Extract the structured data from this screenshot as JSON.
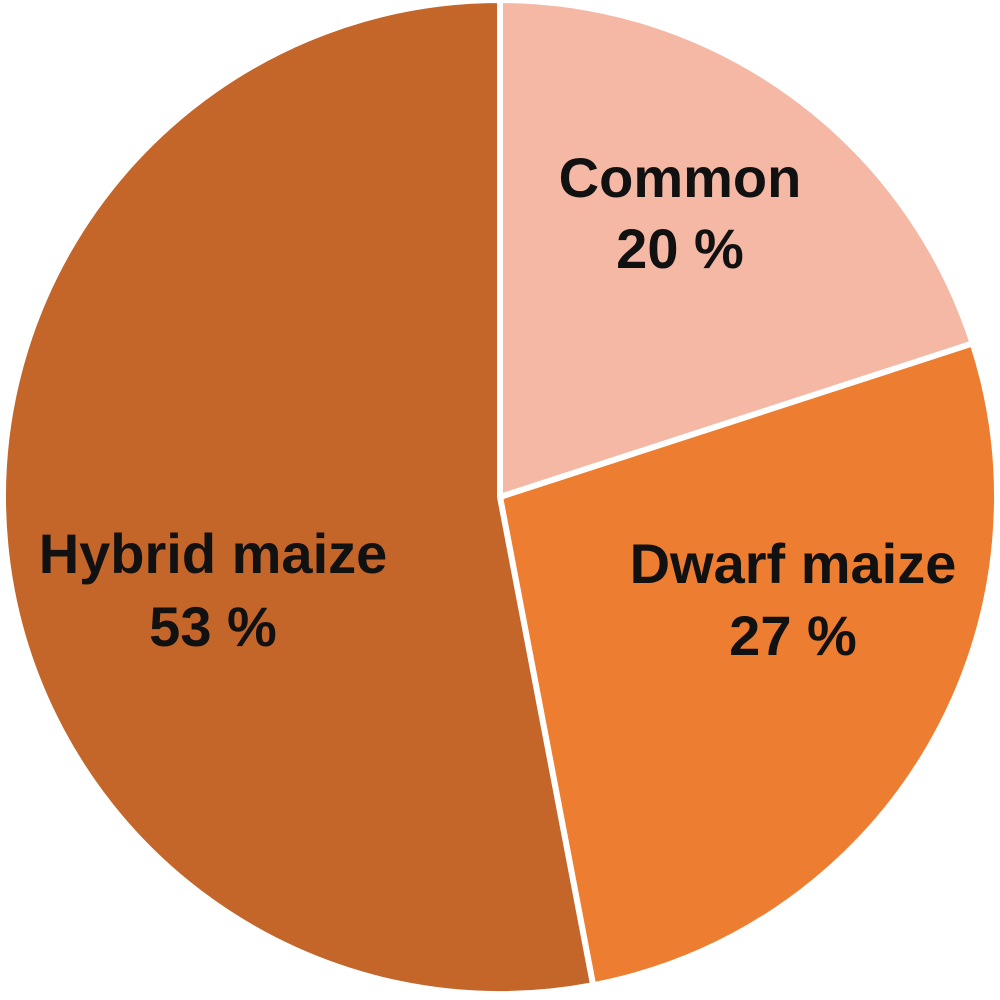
{
  "chart_data": {
    "type": "pie",
    "slices": [
      {
        "name": "Common",
        "value": 20,
        "label": "20 %",
        "color": "#f4b8a5"
      },
      {
        "name": "Dwarf maize",
        "value": 27,
        "label": "27 %",
        "color": "#ed7d31"
      },
      {
        "name": "Hybrid maize",
        "value": 53,
        "label": "53 %",
        "color": "#c4662a"
      }
    ],
    "start_angle_deg": 0,
    "direction": "clockwise",
    "legend": "none"
  }
}
